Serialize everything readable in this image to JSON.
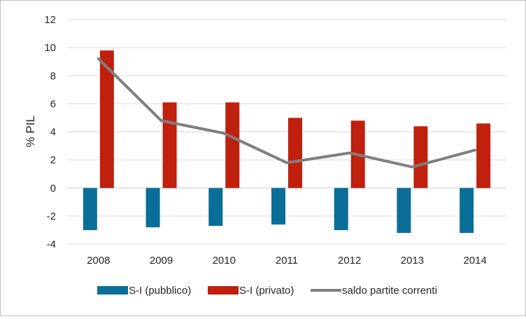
{
  "chart_data": {
    "type": "bar",
    "ylabel": "% PIL",
    "ylim": [
      -4,
      12
    ],
    "yticks": [
      -4,
      -2,
      0,
      2,
      4,
      6,
      8,
      10,
      12
    ],
    "ytick_labels": [
      "-4",
      "-2",
      "0",
      "2",
      "4",
      "6",
      "8",
      "10",
      "12"
    ],
    "grid": true,
    "legend_position": "bottom",
    "categories": [
      "2008",
      "2009",
      "2010",
      "2011",
      "2012",
      "2013",
      "2014"
    ],
    "series": [
      {
        "name": "S-I (pubblico)",
        "kind": "bar",
        "color": "#0a6e99",
        "values": [
          -3.0,
          -2.8,
          -2.7,
          -2.6,
          -3.0,
          -3.2,
          -3.2
        ]
      },
      {
        "name": "S-I (privato)",
        "kind": "bar",
        "color": "#c0200e",
        "values": [
          9.8,
          6.1,
          6.1,
          5.0,
          4.8,
          4.4,
          4.6
        ]
      },
      {
        "name": "saldo partite correnti",
        "kind": "line",
        "color": "#7f7f7f",
        "values": [
          9.2,
          4.8,
          3.9,
          1.8,
          2.5,
          1.5,
          2.7
        ]
      }
    ]
  }
}
